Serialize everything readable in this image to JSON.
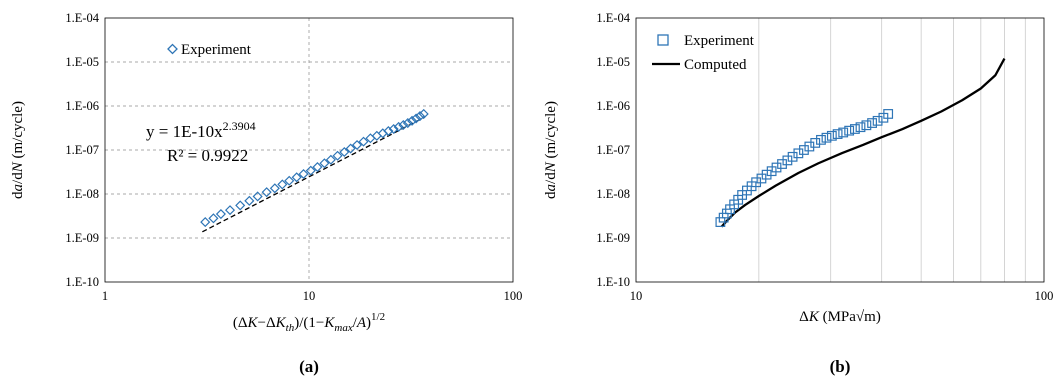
{
  "chart_data": [
    {
      "type": "scatter",
      "panel_label": "(a)",
      "x_scale": "log",
      "y_scale": "log",
      "xlim": [
        1,
        100
      ],
      "ylim": [
        1e-10,
        0.0001
      ],
      "x_ticks": [
        "1",
        "10",
        "100"
      ],
      "y_ticks": [
        "1.E-10",
        "1.E-09",
        "1.E-08",
        "1.E-07",
        "1.E-06",
        "1.E-05",
        "1.E-04"
      ],
      "xlabel_parts": {
        "open": "(Δ",
        "K1": "K",
        "minus": "−Δ",
        "K2": "K",
        "sub_th": "th",
        "mid": ")/(1−",
        "K3": "K",
        "sub_max": "max",
        "slash": "/",
        "A": "A",
        "close": ")",
        "exp": "1/2"
      },
      "ylabel_parts": {
        "d1": "d",
        "a": "a",
        "slash": "/d",
        "N": "N",
        "unit": " (m/cycle)"
      },
      "grid": {
        "major": true,
        "style": "dashed"
      },
      "legend": {
        "position": "top-left",
        "entries": [
          "Experiment"
        ]
      },
      "annotations": {
        "equation_base": "y = 1E-10x",
        "equation_exp": "2.3904",
        "r_squared": "R² = 0.9922"
      },
      "series": [
        {
          "name": "Experiment",
          "marker": "diamond",
          "color": "#2e75b6",
          "x": [
            3.1,
            3.4,
            3.7,
            4.1,
            4.6,
            5.1,
            5.6,
            6.2,
            6.8,
            7.4,
            8.0,
            8.7,
            9.4,
            10.2,
            11.0,
            11.9,
            12.8,
            13.8,
            14.9,
            16.0,
            17.2,
            18.5,
            20.0,
            21.5,
            23.0,
            24.5,
            26.0,
            27.5,
            29.0,
            30.5,
            32.0,
            33.5,
            35.0,
            36.5
          ],
          "y": [
            2.3e-09,
            2.8e-09,
            3.5e-09,
            4.3e-09,
            5.5e-09,
            7e-09,
            8.8e-09,
            1.1e-08,
            1.35e-08,
            1.65e-08,
            2e-08,
            2.4e-08,
            2.85e-08,
            3.4e-08,
            4.1e-08,
            5e-08,
            6e-08,
            7.4e-08,
            9e-08,
            1.08e-07,
            1.3e-07,
            1.55e-07,
            1.85e-07,
            2.1e-07,
            2.4e-07,
            2.7e-07,
            3e-07,
            3.35e-07,
            3.7e-07,
            4.1e-07,
            4.6e-07,
            5.2e-07,
            5.9e-07,
            6.6e-07
          ]
        },
        {
          "name": "trendline",
          "line": "dashed",
          "color": "#000000",
          "coefficient": 1e-10,
          "exponent": 2.3904,
          "x_range": [
            3.0,
            37.0
          ]
        }
      ]
    },
    {
      "type": "scatter",
      "panel_label": "(b)",
      "x_scale": "log",
      "y_scale": "log",
      "xlim": [
        10,
        100
      ],
      "ylim": [
        1e-10,
        0.0001
      ],
      "x_ticks": [
        "10",
        "100"
      ],
      "y_ticks": [
        "1.E-10",
        "1.E-09",
        "1.E-08",
        "1.E-07",
        "1.E-06",
        "1.E-05",
        "1.E-04"
      ],
      "xlabel_parts": {
        "delta": "Δ",
        "K": "K",
        "unit": " (MPa√m)"
      },
      "ylabel_parts": {
        "d1": "d",
        "a": "a",
        "slash": "/d",
        "N": "N",
        "unit": " (m/cycle)"
      },
      "grid": {
        "x_minor_vertical": true,
        "color": "#d0d0d0"
      },
      "legend": {
        "position": "top-left",
        "entries": [
          "Experiment",
          "Computed"
        ]
      },
      "series": [
        {
          "name": "Experiment",
          "marker": "square",
          "color": "#2e75b6",
          "x": [
            16.1,
            16.4,
            16.7,
            17.0,
            17.4,
            17.8,
            18.2,
            18.7,
            19.2,
            19.7,
            20.3,
            20.9,
            21.5,
            22.1,
            22.8,
            23.5,
            24.2,
            25.0,
            25.8,
            26.6,
            27.5,
            28.4,
            29.3,
            30.2,
            31.2,
            32.2,
            33.3,
            34.4,
            35.5,
            36.7,
            37.9,
            39.1,
            40.4,
            41.5
          ],
          "y": [
            2.3e-09,
            2.9e-09,
            3.6e-09,
            4.5e-09,
            5.8e-09,
            7.4e-09,
            9.5e-09,
            1.2e-08,
            1.5e-08,
            1.85e-08,
            2.25e-08,
            2.75e-08,
            3.3e-08,
            4e-08,
            4.8e-08,
            5.8e-08,
            7e-08,
            8.4e-08,
            1e-07,
            1.2e-07,
            1.45e-07,
            1.7e-07,
            1.9e-07,
            2.1e-07,
            2.3e-07,
            2.5e-07,
            2.75e-07,
            3e-07,
            3.3e-07,
            3.65e-07,
            4.1e-07,
            4.6e-07,
            5.4e-07,
            6.6e-07
          ]
        },
        {
          "name": "Computed",
          "line": "solid",
          "color": "#000000",
          "x": [
            16.2,
            16.8,
            17.5,
            18.5,
            20.0,
            22.0,
            25.0,
            28.0,
            32.0,
            36.0,
            40.0,
            45.0,
            50.0,
            56.0,
            63.0,
            70.0,
            76.0,
            80.0
          ],
          "y": [
            1.8e-09,
            2.6e-09,
            3.8e-09,
            5.6e-09,
            9e-09,
            1.55e-08,
            3e-08,
            5e-08,
            8.5e-08,
            1.3e-07,
            1.95e-07,
            3e-07,
            4.6e-07,
            7.5e-07,
            1.35e-06,
            2.5e-06,
            5e-06,
            1.2e-05
          ]
        }
      ]
    }
  ]
}
